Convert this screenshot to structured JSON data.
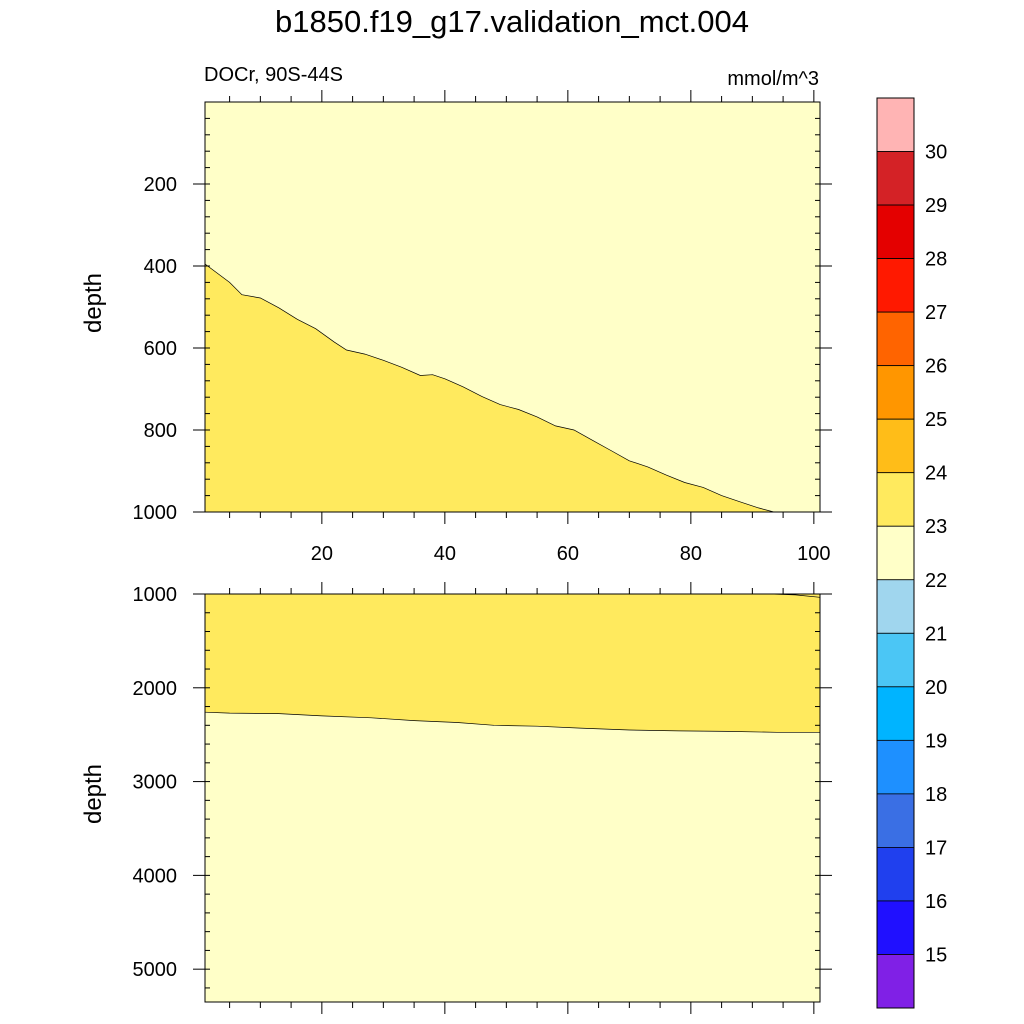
{
  "title": "b1850.f19_g17.validation_mct.004",
  "region_label": "DOCr, 90S-44S",
  "units_label": "mmol/m^3",
  "chart_data": {
    "type": "heatmap",
    "title": "b1850.f19_g17.validation_mct.004",
    "field": "DOCr, 90S-44S",
    "units": "mmol/m^3",
    "ylabel": "depth",
    "colorbar": {
      "labels": [
        "15",
        "16",
        "17",
        "18",
        "19",
        "20",
        "21",
        "22",
        "23",
        "24",
        "25",
        "26",
        "27",
        "28",
        "29",
        "30"
      ],
      "colors": [
        "#ffb4b4",
        "#d42226",
        "#e40000",
        "#ff1900",
        "#ff6400",
        "#ff9600",
        "#ffbd18",
        "#ffea5e",
        "#ffffc8",
        "#a0d6ee",
        "#4bc6f5",
        "#00b4ff",
        "#1e90ff",
        "#3a6fe4",
        "#2040ee",
        "#2010ff",
        "#8020e6"
      ]
    },
    "panels": [
      {
        "name": "upper",
        "xlim": [
          1,
          101
        ],
        "ylim": [
          0,
          1000
        ],
        "y_inverted": true,
        "x_ticks": [
          20,
          40,
          60,
          80,
          100
        ],
        "x_tick_labels": [
          "20",
          "40",
          "60",
          "80",
          "100"
        ],
        "y_ticks": [
          200,
          400,
          600,
          800,
          1000
        ],
        "y_tick_labels": [
          "200",
          "400",
          "600",
          "800",
          "1000"
        ],
        "contour_level": 23,
        "contour": {
          "x": [
            1,
            5,
            7,
            10,
            13,
            16,
            19,
            22,
            24,
            27,
            30,
            33,
            36,
            38,
            40,
            43,
            46,
            49,
            52,
            55,
            58,
            61,
            64,
            67,
            70,
            73,
            76,
            79,
            82,
            85,
            88,
            91,
            93.5
          ],
          "y": [
            395,
            440,
            470,
            478,
            502,
            530,
            553,
            585,
            605,
            615,
            630,
            647,
            667,
            665,
            675,
            695,
            718,
            738,
            750,
            768,
            790,
            800,
            825,
            850,
            875,
            890,
            910,
            928,
            940,
            960,
            975,
            990,
            1000
          ]
        },
        "region_shallow": "22-23",
        "region_deep": "23-24"
      },
      {
        "name": "lower",
        "xlim": [
          1,
          101
        ],
        "ylim": [
          1000,
          5350
        ],
        "y_inverted": true,
        "x_ticks": [
          20,
          40,
          60,
          80,
          100
        ],
        "y_ticks": [
          1000,
          2000,
          3000,
          4000,
          5000
        ],
        "y_tick_labels": [
          "1000",
          "2000",
          "3000",
          "4000",
          "5000"
        ],
        "contour_level": 23,
        "contour": {
          "x": [
            1,
            5,
            13,
            20,
            28,
            35,
            42,
            48,
            55,
            62,
            70,
            78,
            86,
            94,
            101
          ],
          "y": [
            2260,
            2270,
            2275,
            2300,
            2320,
            2350,
            2370,
            2400,
            2410,
            2430,
            2450,
            2460,
            2465,
            2475,
            2475
          ]
        },
        "top_right_contour": {
          "x": [
            93,
            97,
            101
          ],
          "y": [
            1000,
            1010,
            1035
          ]
        },
        "region_upper": "23-24",
        "region_lower": "22-23"
      }
    ]
  }
}
